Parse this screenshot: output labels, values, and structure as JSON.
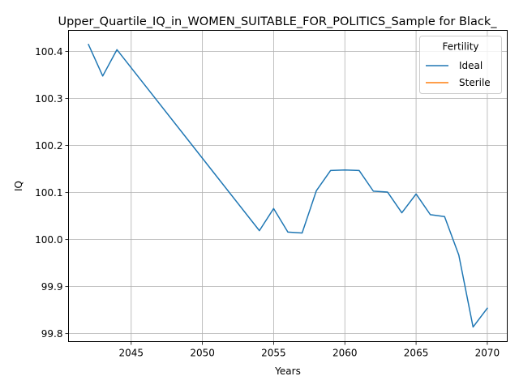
{
  "chart_data": {
    "type": "line",
    "title": "Upper_Quartile_IQ_in_WOMEN_SUITABLE_FOR_POLITICS_Sample for Black_",
    "xlabel": "Years",
    "ylabel": "IQ",
    "xlim": [
      2040.6,
      2071.4
    ],
    "ylim": [
      99.783,
      100.445
    ],
    "xticks": [
      2045,
      2050,
      2055,
      2060,
      2065,
      2070
    ],
    "yticks": [
      99.8,
      99.9,
      100.0,
      100.1,
      100.2,
      100.3,
      100.4
    ],
    "xtick_labels": [
      "2045",
      "2050",
      "2055",
      "2060",
      "2065",
      "2070"
    ],
    "ytick_labels": [
      "99.8",
      "99.9",
      "100.0",
      "100.1",
      "100.2",
      "100.3",
      "100.4"
    ],
    "grid": true,
    "legend": {
      "title": "Fertility",
      "position": "top-right"
    },
    "series": [
      {
        "name": "Ideal",
        "color": "#1f77b4",
        "x": [
          2042,
          2043,
          2044,
          2054,
          2055,
          2056,
          2057,
          2058,
          2059,
          2060,
          2061,
          2062,
          2063,
          2064,
          2065,
          2066,
          2067,
          2068,
          2069,
          2070
        ],
        "y": [
          100.415,
          100.348,
          100.404,
          100.019,
          100.066,
          100.016,
          100.014,
          100.104,
          100.147,
          100.148,
          100.147,
          100.103,
          100.101,
          100.057,
          100.097,
          100.053,
          100.049,
          99.967,
          99.814,
          99.854
        ]
      },
      {
        "name": "Sterile",
        "color": "#ff7f0e",
        "x": [],
        "y": []
      }
    ]
  }
}
